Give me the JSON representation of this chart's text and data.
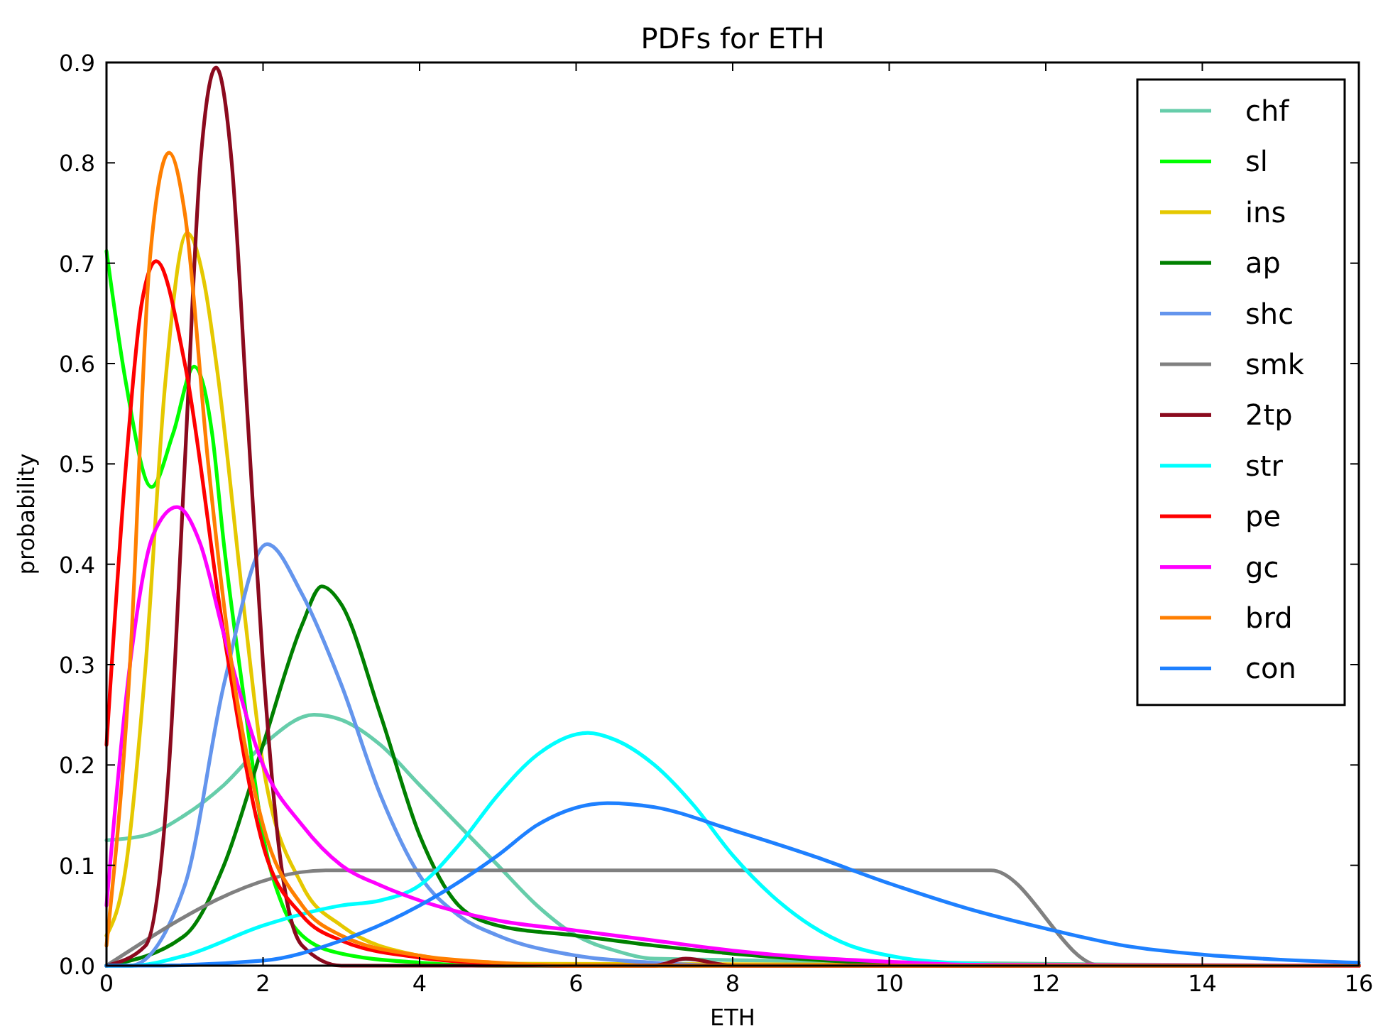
{
  "chart_data": {
    "type": "line",
    "title": "PDFs for ETH",
    "xlabel": "ETH",
    "ylabel": "probability",
    "xlim": [
      0,
      16
    ],
    "ylim": [
      0,
      0.9
    ],
    "xticks": [
      0,
      2,
      4,
      6,
      8,
      10,
      12,
      14,
      16
    ],
    "yticks": [
      {
        "value": 0,
        "label": "0.0"
      },
      0.1,
      0.2,
      0.3,
      0.4,
      0.5,
      0.6,
      0.7,
      0.8,
      0.9
    ],
    "grid": false,
    "legend": "top right",
    "marker": "none",
    "line_style": "solid",
    "series": [
      {
        "name": "chf",
        "color": "#66cdaa",
        "x": [
          0,
          0.5,
          1,
          1.5,
          2,
          2.65,
          3,
          3.5,
          4,
          4.5,
          5,
          5.5,
          6,
          6.5,
          7,
          16
        ],
        "values": [
          0.125,
          0.13,
          0.15,
          0.18,
          0.22,
          0.25,
          0.245,
          0.22,
          0.18,
          0.14,
          0.1,
          0.06,
          0.03,
          0.015,
          0.007,
          0
        ]
      },
      {
        "name": "sl",
        "color": "#00ff00",
        "x": [
          0,
          0.25,
          0.575,
          0.85,
          1.12,
          1.35,
          1.5,
          1.75,
          2,
          2.25,
          2.5,
          3,
          4,
          5,
          16
        ],
        "values": [
          0.712,
          0.58,
          0.477,
          0.53,
          0.597,
          0.53,
          0.42,
          0.27,
          0.13,
          0.06,
          0.03,
          0.012,
          0.003,
          0,
          0
        ]
      },
      {
        "name": "ins",
        "color": "#e5c800",
        "x": [
          0,
          0.25,
          0.5,
          0.75,
          1.03,
          1.25,
          1.42,
          1.75,
          2,
          2.5,
          3,
          4,
          5,
          16
        ],
        "values": [
          0.03,
          0.1,
          0.3,
          0.58,
          0.73,
          0.68,
          0.59,
          0.36,
          0.2,
          0.08,
          0.04,
          0.01,
          0.002,
          0
        ]
      },
      {
        "name": "ap",
        "color": "#008000",
        "x": [
          0,
          1,
          1.5,
          2,
          2.5,
          2.75,
          3,
          3.5,
          4,
          4.5,
          5,
          6,
          7,
          8,
          9,
          10,
          11,
          16
        ],
        "values": [
          0,
          0.03,
          0.1,
          0.22,
          0.34,
          0.378,
          0.36,
          0.25,
          0.13,
          0.06,
          0.04,
          0.03,
          0.02,
          0.012,
          0.006,
          0.002,
          0,
          0
        ]
      },
      {
        "name": "shc",
        "color": "#6495ed",
        "x": [
          0,
          0.3,
          1,
          1.5,
          2.05,
          2.5,
          3,
          3.5,
          4,
          4.5,
          5,
          6,
          7,
          8,
          16
        ],
        "values": [
          0,
          0,
          0.08,
          0.28,
          0.42,
          0.37,
          0.28,
          0.17,
          0.09,
          0.05,
          0.03,
          0.01,
          0.003,
          0,
          0
        ]
      },
      {
        "name": "smk",
        "color": "#808080",
        "x": [
          0,
          2.8,
          11.3,
          12.7,
          16
        ],
        "values": [
          0,
          0.095,
          0.095,
          0,
          0
        ]
      },
      {
        "name": "2tp",
        "color": "#8b0a1e",
        "x": [
          0,
          0.5,
          0.8,
          1,
          1.2,
          1.4,
          1.6,
          1.8,
          2,
          2.2,
          2.5,
          3,
          7,
          7.4,
          8,
          16
        ],
        "values": [
          0,
          0.02,
          0.2,
          0.5,
          0.8,
          0.895,
          0.8,
          0.55,
          0.3,
          0.12,
          0.02,
          0,
          0,
          0.007,
          0,
          0
        ]
      },
      {
        "name": "str",
        "color": "#00ffff",
        "x": [
          0,
          0.3,
          1,
          2,
          3,
          3.5,
          4,
          4.5,
          5,
          5.5,
          6.15,
          6.5,
          7,
          7.5,
          8,
          8.5,
          9,
          9.5,
          10,
          11,
          12,
          16
        ],
        "values": [
          0,
          0,
          0.01,
          0.04,
          0.06,
          0.065,
          0.08,
          0.12,
          0.17,
          0.21,
          0.232,
          0.225,
          0.2,
          0.16,
          0.11,
          0.07,
          0.04,
          0.02,
          0.01,
          0.002,
          0,
          0
        ]
      },
      {
        "name": "pe",
        "color": "#ff0000",
        "x": [
          0,
          0.25,
          0.45,
          0.635,
          1,
          1.5,
          2,
          2.5,
          3,
          4,
          5,
          6,
          16
        ],
        "values": [
          0.22,
          0.5,
          0.66,
          0.702,
          0.6,
          0.33,
          0.12,
          0.05,
          0.025,
          0.008,
          0.002,
          0,
          0
        ]
      },
      {
        "name": "gc",
        "color": "#ff00ff",
        "x": [
          0,
          0.3,
          0.6,
          0.9,
          1.2,
          1.5,
          2,
          2.5,
          3,
          3.5,
          4,
          5,
          6,
          7,
          8,
          9,
          10,
          11,
          16
        ],
        "values": [
          0.06,
          0.3,
          0.43,
          0.457,
          0.42,
          0.33,
          0.2,
          0.14,
          0.1,
          0.08,
          0.065,
          0.045,
          0.035,
          0.025,
          0.015,
          0.008,
          0.004,
          0.001,
          0
        ]
      },
      {
        "name": "brd",
        "color": "#ff7f00",
        "x": [
          0,
          0.3,
          0.55,
          0.8,
          1,
          1.3,
          1.6,
          2,
          2.5,
          3,
          4,
          5,
          6,
          16
        ],
        "values": [
          0.02,
          0.3,
          0.7,
          0.81,
          0.75,
          0.5,
          0.3,
          0.14,
          0.06,
          0.03,
          0.01,
          0.003,
          0,
          0
        ]
      },
      {
        "name": "con",
        "color": "#1e80ff",
        "x": [
          0,
          0.5,
          2,
          3,
          4,
          5,
          5.5,
          6.4,
          7,
          8,
          9,
          10,
          11,
          12,
          13,
          14,
          15,
          16
        ],
        "values": [
          0,
          0,
          0.005,
          0.025,
          0.06,
          0.11,
          0.14,
          0.162,
          0.158,
          0.135,
          0.11,
          0.082,
          0.057,
          0.037,
          0.02,
          0.011,
          0.006,
          0.003
        ]
      }
    ]
  }
}
